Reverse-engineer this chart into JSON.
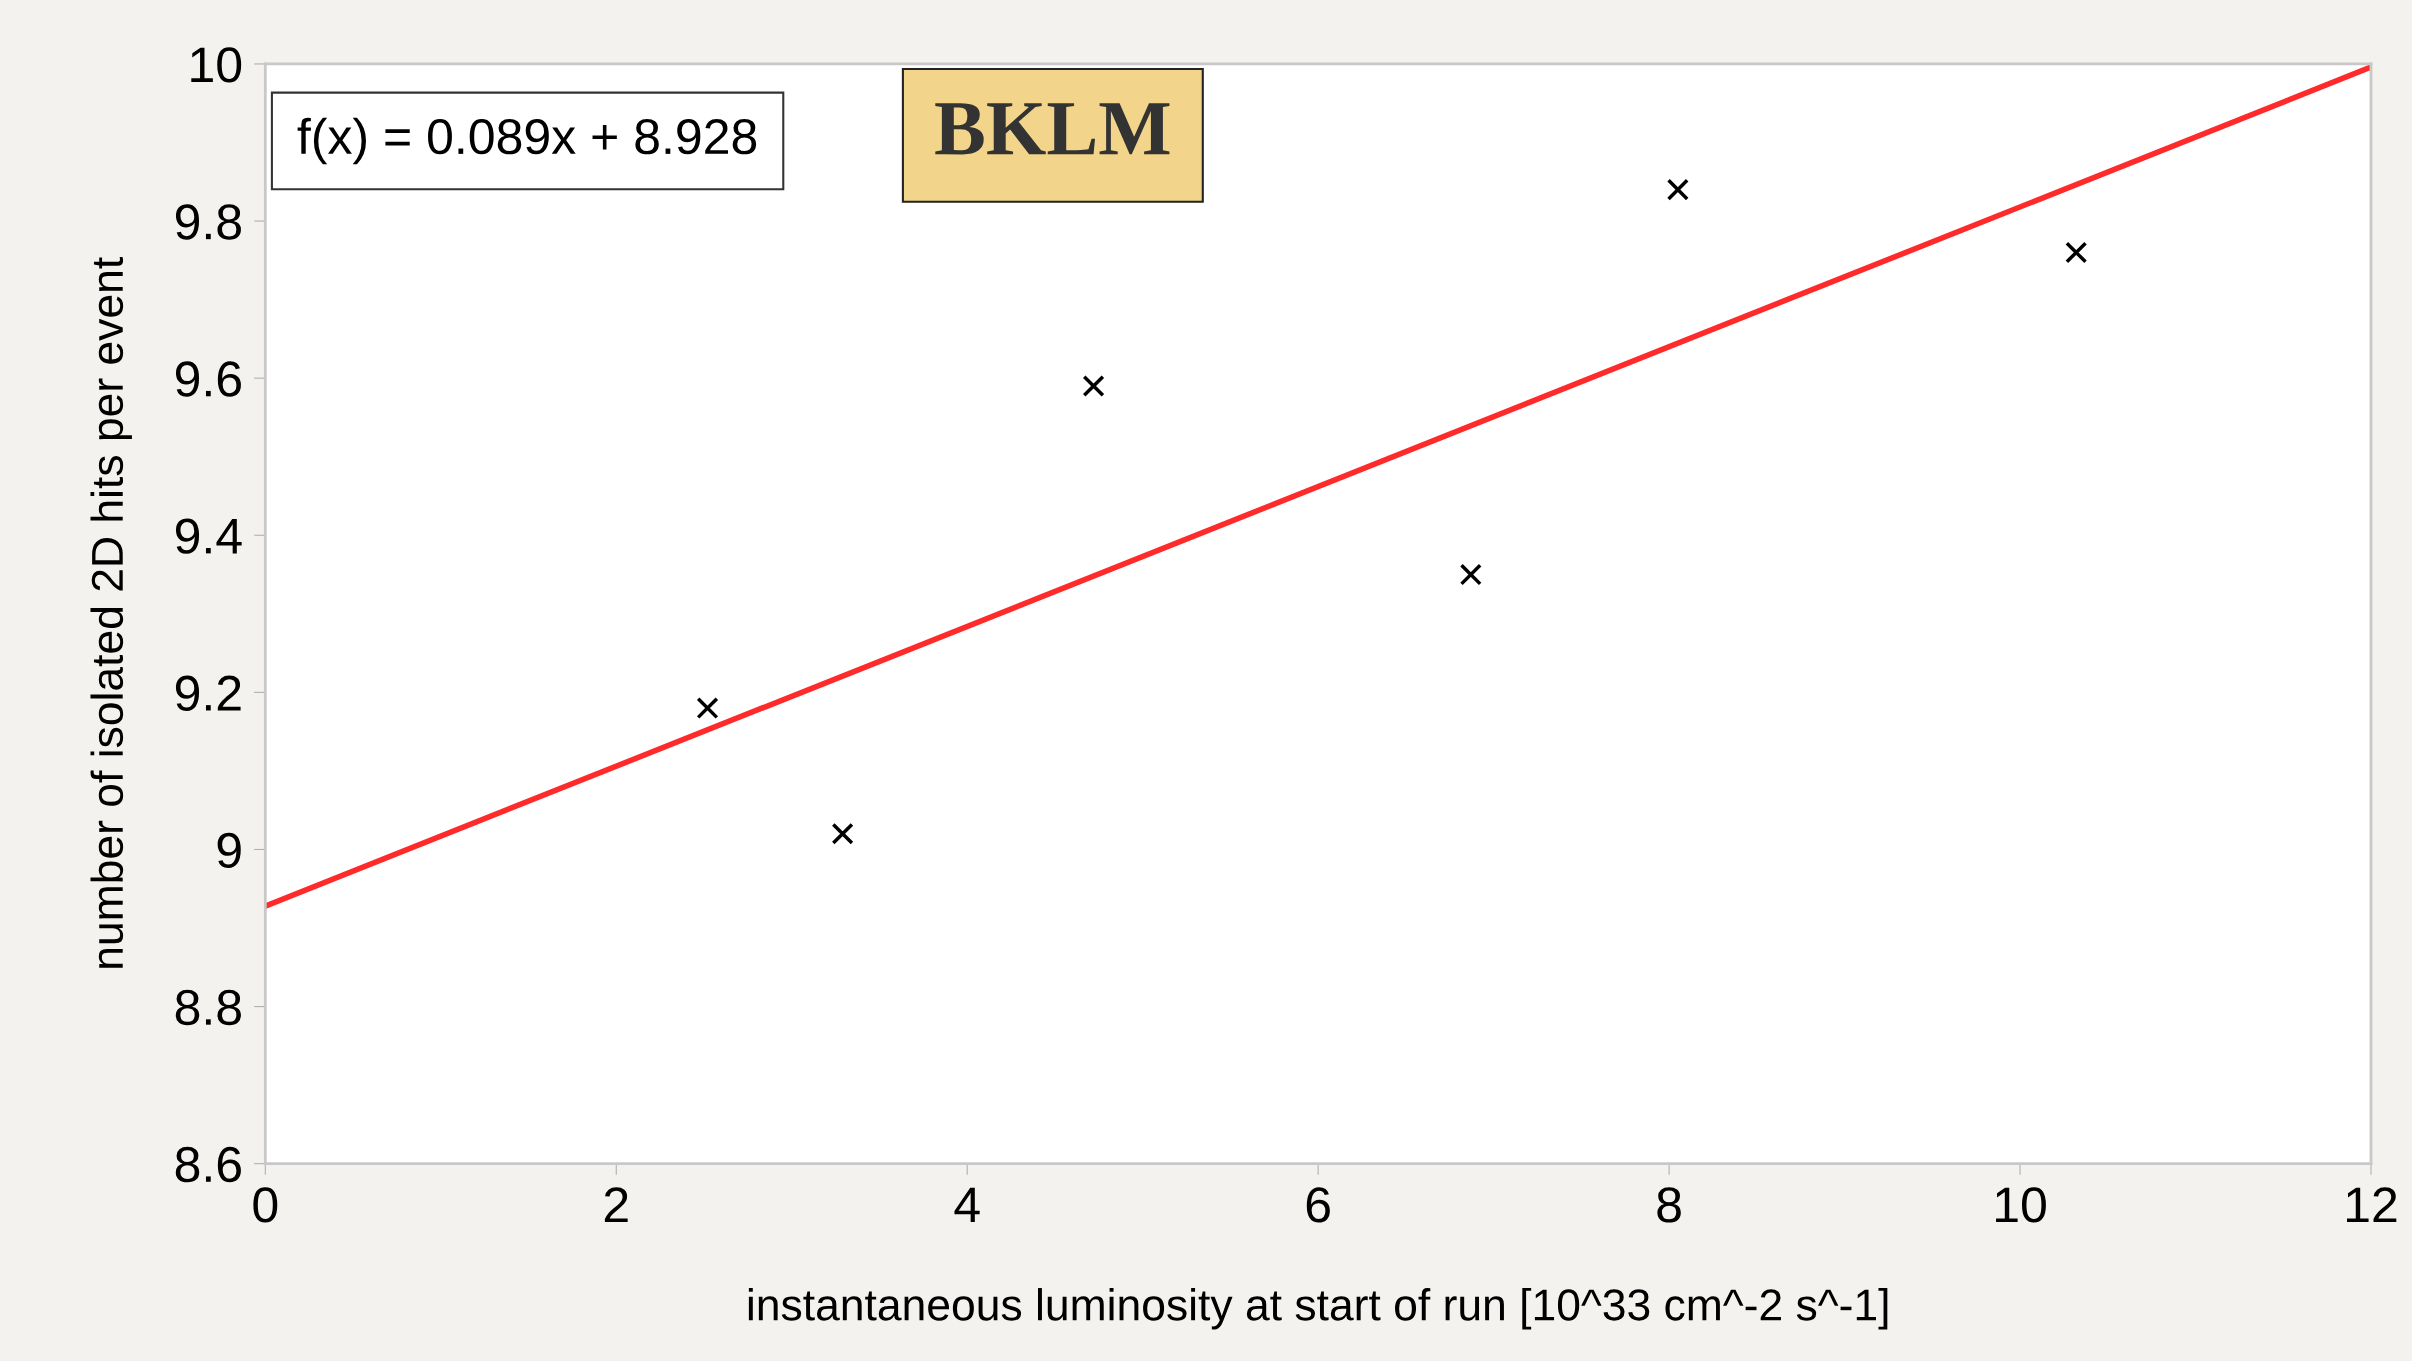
{
  "chart_data": {
    "type": "scatter",
    "xlabel": "instantaneous luminosity at start of run [10^33 cm^-2 s^-1]",
    "ylabel": "number of isolated 2D hits per event",
    "series": [
      {
        "color": "#000000",
        "marker": "cross",
        "x": [
          2.52,
          3.29,
          4.72,
          6.87,
          8.05,
          10.32
        ],
        "values": [
          9.18,
          9.02,
          9.59,
          9.35,
          9.84,
          9.76
        ]
      },
      {
        "type": "line",
        "color": "#ff2a2a",
        "marker": "none",
        "line_style": "solid",
        "x": [
          0,
          12
        ],
        "values": [
          8.928,
          9.996
        ]
      }
    ],
    "xlim": [
      0,
      12
    ],
    "ylim": [
      8.6,
      10
    ],
    "xticks": [
      0,
      2,
      4,
      6,
      8,
      10,
      12
    ],
    "yticks": [
      8.6,
      8.8,
      9,
      9.2,
      9.4,
      9.6,
      9.8,
      10
    ],
    "grid": false,
    "legend": false,
    "annotations": [
      "f(x) = 0.089x + 8.928",
      "BKLM"
    ]
  }
}
